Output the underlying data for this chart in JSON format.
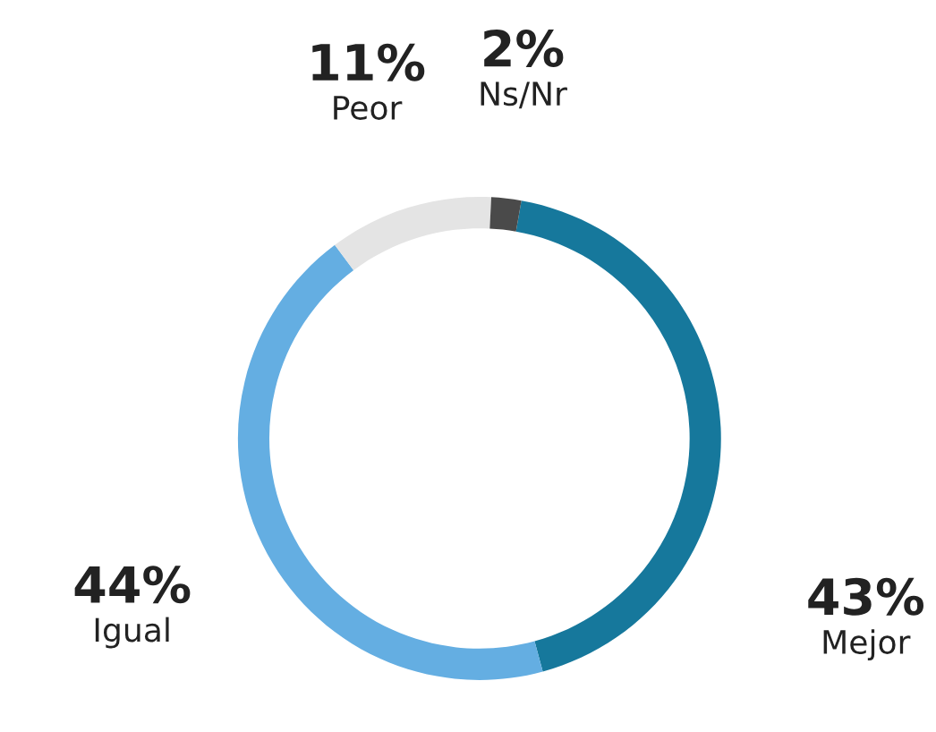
{
  "chart_data": {
    "type": "donut",
    "categories": [
      "Mejor",
      "Igual",
      "Peor",
      "Ns/Nr"
    ],
    "values": [
      43,
      44,
      11,
      2
    ],
    "value_labels": [
      "43%",
      "44%",
      "11%",
      "2%"
    ],
    "colors": [
      "#16789c",
      "#64aee2",
      "#e4e4e4",
      "#4a4a4a"
    ]
  }
}
